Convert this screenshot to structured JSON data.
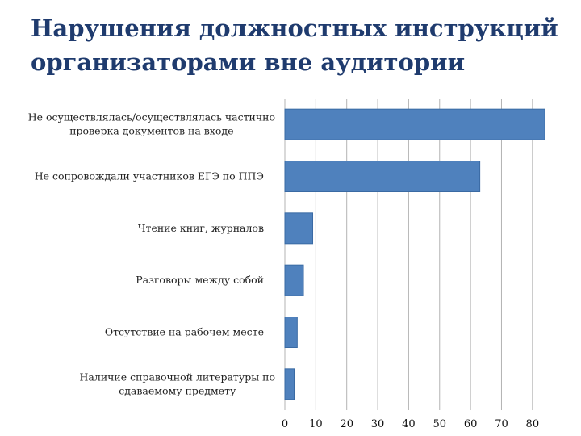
{
  "title": {
    "line1": "Нарушения должностных инструкций",
    "line2": "организаторами вне аудитории"
  },
  "colors": {
    "title": "#1f3b6e",
    "bar": "#4f81bd",
    "bar_stroke": "#3a6aa3",
    "grid": "#b3b3b3"
  },
  "chart_data": {
    "type": "bar",
    "orientation": "horizontal",
    "categories": [
      [
        "Не осуществлялась/осуществлялась частично",
        "проверка документов на входе"
      ],
      [
        "Не сопровождали участников ЕГЭ по ППЭ"
      ],
      [
        "Чтение книг, журналов"
      ],
      [
        "Разговоры между собой"
      ],
      [
        "Отсутствие на рабочем месте"
      ],
      [
        "Наличие справочной литературы по",
        "сдаваемому предмету"
      ]
    ],
    "values": [
      84,
      63,
      9,
      6,
      4,
      3
    ],
    "xlim": [
      0,
      85
    ],
    "xticks": [
      0,
      10,
      20,
      30,
      40,
      50,
      60,
      70,
      80
    ],
    "grid": "vertical",
    "legend": "none",
    "xlabel": "",
    "ylabel": ""
  }
}
